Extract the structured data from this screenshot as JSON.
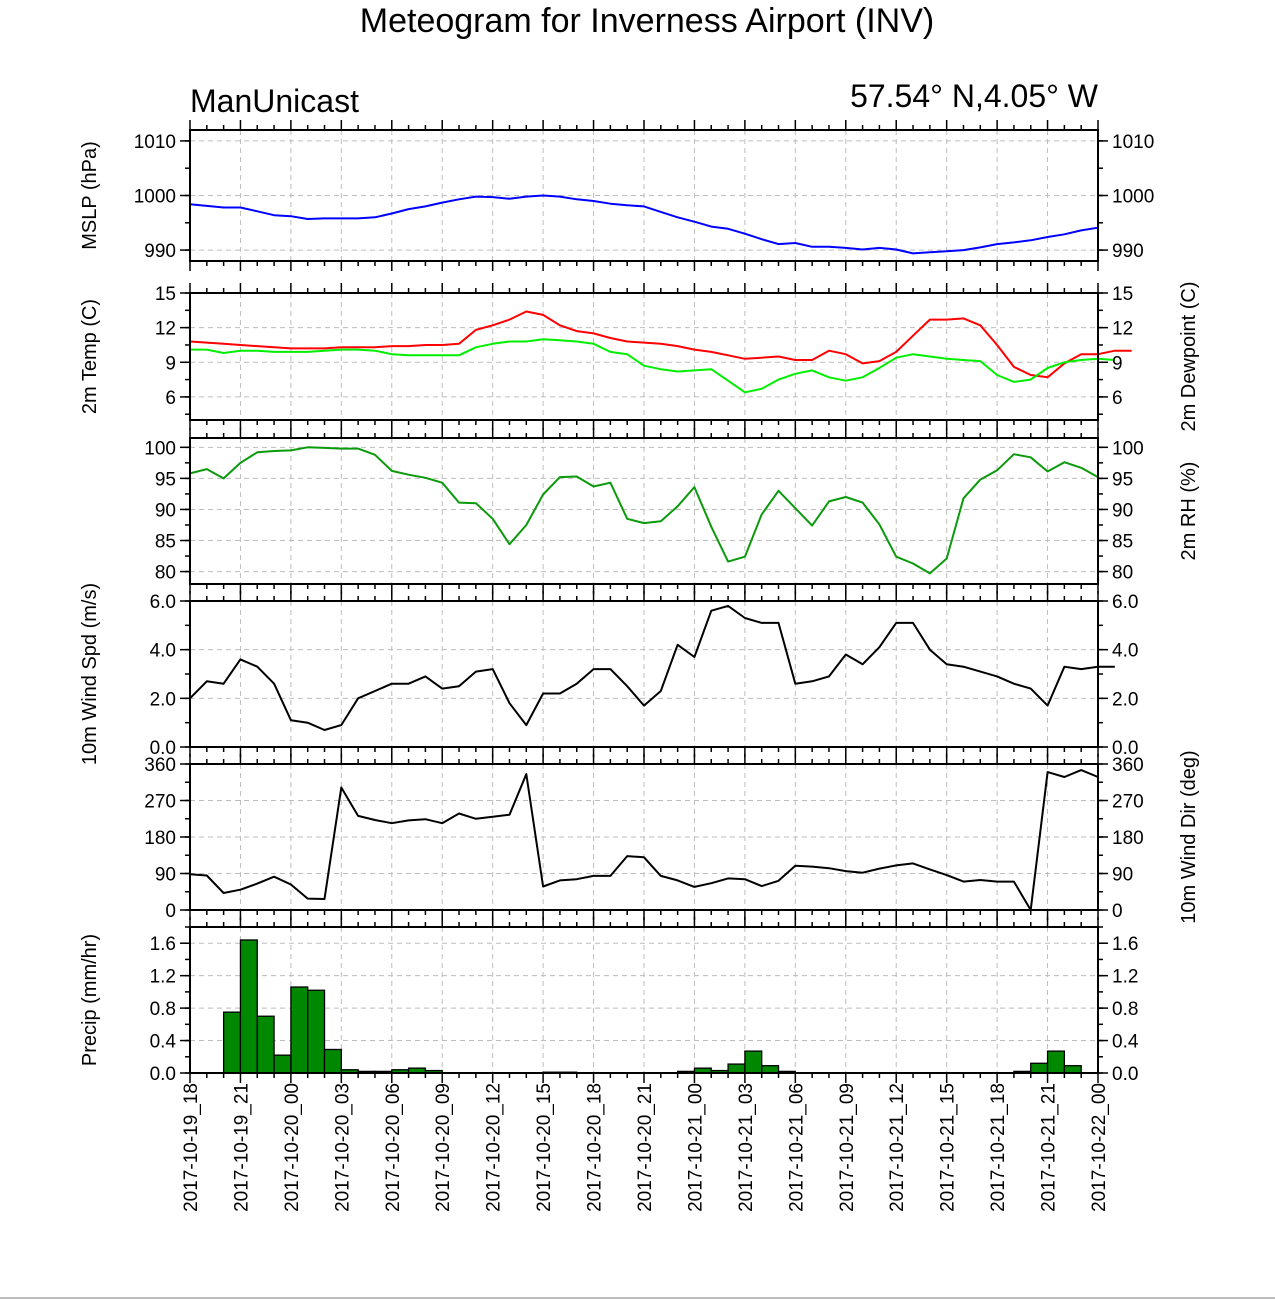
{
  "title": "Meteogram for Inverness Airport (INV)",
  "model": "ManUnicast",
  "location": "57.54° N,4.05° W",
  "colors": {
    "mslp": "#0000ff",
    "temp": "#ff0000",
    "dewpoint": "#00ee00",
    "rh": "#0b9a0b",
    "wind": "#000000",
    "precip_fill": "#008800"
  },
  "chart_data": {
    "type": "line",
    "x_tick_labels": [
      "2017-10-19_18",
      "2017-10-19_21",
      "2017-10-20_00",
      "2017-10-20_03",
      "2017-10-20_06",
      "2017-10-20_09",
      "2017-10-20_12",
      "2017-10-20_15",
      "2017-10-20_18",
      "2017-10-20_21",
      "2017-10-21_00",
      "2017-10-21_03",
      "2017-10-21_06",
      "2017-10-21_09",
      "2017-10-21_12",
      "2017-10-21_15",
      "2017-10-21_18",
      "2017-10-21_21",
      "2017-10-22_00"
    ],
    "x_range_hours": [
      0,
      54
    ],
    "grid": true,
    "panels": [
      {
        "id": "mslp",
        "ylabel_left": "MSLP (hPa)",
        "ylabel_right": "",
        "ylim": [
          988,
          1012
        ],
        "ticks": [
          990,
          1000,
          1010
        ],
        "tick_labels": [
          "990",
          "1000",
          "1010"
        ],
        "series": [
          {
            "color_key": "mslp",
            "values": [
              998.4,
              998.1,
              997.8,
              997.8,
              997.1,
              996.4,
              996.2,
              995.7,
              995.8,
              995.8,
              995.8,
              996.0,
              996.7,
              997.5,
              998.0,
              998.7,
              999.3,
              999.8,
              999.7,
              999.4,
              999.8,
              1000.0,
              999.8,
              999.3,
              999.0,
              998.5,
              998.2,
              998.0,
              997.0,
              996.0,
              995.2,
              994.3,
              993.9,
              993.0,
              992.0,
              991.1,
              991.3,
              990.6,
              990.6,
              990.4,
              990.1,
              990.4,
              990.1,
              989.4,
              989.6,
              989.8,
              990.0,
              990.5,
              991.1,
              991.4,
              991.8,
              992.4,
              992.9,
              993.6,
              994.1
            ]
          }
        ]
      },
      {
        "id": "temp",
        "ylabel_left": "2m Temp (C)",
        "ylabel_right": "2m Dewpoint (C)",
        "ylim": [
          4,
          15
        ],
        "ticks": [
          6,
          9,
          12,
          15
        ],
        "tick_labels": [
          "6",
          "9",
          "12",
          "15"
        ],
        "series": [
          {
            "color_key": "temp",
            "values": [
              10.8,
              10.7,
              10.6,
              10.5,
              10.4,
              10.3,
              10.2,
              10.2,
              10.2,
              10.3,
              10.3,
              10.3,
              10.4,
              10.4,
              10.5,
              10.5,
              10.6,
              11.8,
              12.2,
              12.7,
              13.4,
              13.1,
              12.2,
              11.7,
              11.5,
              11.1,
              10.8,
              10.7,
              10.6,
              10.4,
              10.1,
              9.9,
              9.6,
              9.3,
              9.4,
              9.5,
              9.2,
              9.2,
              10.0,
              9.7,
              8.9,
              9.1,
              9.9,
              11.3,
              12.7,
              12.7,
              12.8,
              12.2,
              10.5,
              8.6,
              7.9,
              7.7,
              8.9,
              9.7,
              9.7,
              10.0,
              10.0
            ]
          },
          {
            "color_key": "dewpoint",
            "values": [
              10.1,
              10.1,
              9.8,
              10.0,
              10.0,
              9.9,
              9.9,
              9.9,
              10.0,
              10.1,
              10.1,
              10.0,
              9.7,
              9.6,
              9.6,
              9.6,
              9.6,
              10.3,
              10.6,
              10.8,
              10.8,
              11.0,
              10.9,
              10.8,
              10.6,
              9.9,
              9.7,
              8.7,
              8.4,
              8.2,
              8.3,
              8.4,
              7.4,
              6.4,
              6.7,
              7.5,
              8.0,
              8.3,
              7.7,
              7.4,
              7.7,
              8.5,
              9.4,
              9.7,
              9.5,
              9.3,
              9.2,
              9.1,
              7.9,
              7.3,
              7.5,
              8.5,
              9.0,
              9.2,
              9.3,
              9.2
            ]
          }
        ]
      },
      {
        "id": "rh",
        "ylabel_left": "",
        "ylabel_right": "2m RH (%)",
        "ylim": [
          78,
          101.5
        ],
        "ticks": [
          80,
          85,
          90,
          95,
          100
        ],
        "tick_labels": [
          "80",
          "85",
          "90",
          "95",
          "100"
        ],
        "series": [
          {
            "color_key": "rh",
            "values": [
              95.8,
              96.5,
              95.0,
              97.5,
              99.2,
              99.4,
              99.5,
              100.0,
              99.9,
              99.8,
              99.8,
              98.8,
              96.2,
              95.6,
              95.1,
              94.3,
              91.1,
              91.0,
              88.5,
              84.4,
              87.5,
              92.4,
              95.2,
              95.3,
              93.7,
              94.3,
              88.5,
              87.8,
              88.1,
              90.5,
              93.6,
              87.2,
              81.6,
              82.4,
              89.2,
              93.0,
              90.2,
              87.4,
              91.3,
              92.0,
              91.1,
              87.6,
              82.4,
              81.3,
              79.7,
              82.1,
              91.8,
              94.8,
              96.3,
              98.9,
              98.4,
              96.1,
              97.6,
              96.7,
              95.2
            ]
          }
        ]
      },
      {
        "id": "wspd",
        "ylabel_left": "10m Wind Spd (m/s)",
        "ylabel_right": "",
        "ylim": [
          0,
          6
        ],
        "ticks": [
          0,
          2,
          4,
          6
        ],
        "tick_labels": [
          "0.0",
          "2.0",
          "4.0",
          "6.0"
        ],
        "series": [
          {
            "color_key": "wind",
            "values": [
              2.0,
              2.7,
              2.6,
              3.6,
              3.3,
              2.6,
              1.1,
              1.0,
              0.7,
              0.9,
              2.0,
              2.3,
              2.6,
              2.6,
              2.9,
              2.4,
              2.5,
              3.1,
              3.2,
              1.8,
              0.9,
              2.2,
              2.2,
              2.6,
              3.2,
              3.2,
              2.5,
              1.7,
              2.3,
              4.2,
              3.7,
              5.6,
              5.8,
              5.3,
              5.1,
              5.1,
              2.6,
              2.7,
              2.9,
              3.8,
              3.4,
              4.1,
              5.1,
              5.1,
              4.0,
              3.4,
              3.3,
              3.1,
              2.9,
              2.6,
              2.4,
              1.7,
              3.3,
              3.2,
              3.3,
              3.3
            ]
          }
        ]
      },
      {
        "id": "wdir",
        "ylabel_left": "",
        "ylabel_right": "10m Wind Dir (deg)",
        "ylim": [
          0,
          360
        ],
        "ticks": [
          0,
          90,
          180,
          270,
          360
        ],
        "tick_labels": [
          "0",
          "90",
          "180",
          "270",
          "360"
        ],
        "series": [
          {
            "color_key": "wind",
            "values": [
              88,
              85,
              42,
              50,
              65,
              82,
              63,
              28,
              27,
              302,
              232,
              222,
              214,
              221,
              224,
              214,
              238,
              225,
              230,
              235,
              335,
              58,
              73,
              76,
              84,
              84,
              133,
              130,
              84,
              73,
              57,
              66,
              78,
              76,
              59,
              72,
              109,
              107,
              103,
              96,
              92,
              102,
              110,
              115,
              100,
              86,
              70,
              74,
              70,
              70,
              0,
              340,
              328,
              345,
              328
            ]
          }
        ]
      },
      {
        "id": "precip",
        "type": "bar",
        "ylabel_left": "Precip (mm/hr)",
        "ylabel_right": "",
        "ylim": [
          0,
          1.8
        ],
        "ticks": [
          0,
          0.4,
          0.8,
          1.2,
          1.6
        ],
        "tick_labels": [
          "0.0",
          "0.4",
          "0.8",
          "1.2",
          "1.6"
        ],
        "bar_color_key": "precip_fill",
        "values": [
          0,
          0,
          0.75,
          1.64,
          0.7,
          0.22,
          1.06,
          1.02,
          0.29,
          0.04,
          0.02,
          0.02,
          0.04,
          0.06,
          0.03,
          0,
          0,
          0,
          0,
          0,
          0,
          0.01,
          0.01,
          0,
          0,
          0,
          0,
          0,
          0,
          0.02,
          0.06,
          0.03,
          0.11,
          0.27,
          0.09,
          0.02,
          0,
          0,
          0,
          0,
          0,
          0,
          0,
          0,
          0,
          0,
          0,
          0,
          0,
          0.02,
          0.12,
          0.27,
          0.09,
          0
        ]
      }
    ]
  }
}
